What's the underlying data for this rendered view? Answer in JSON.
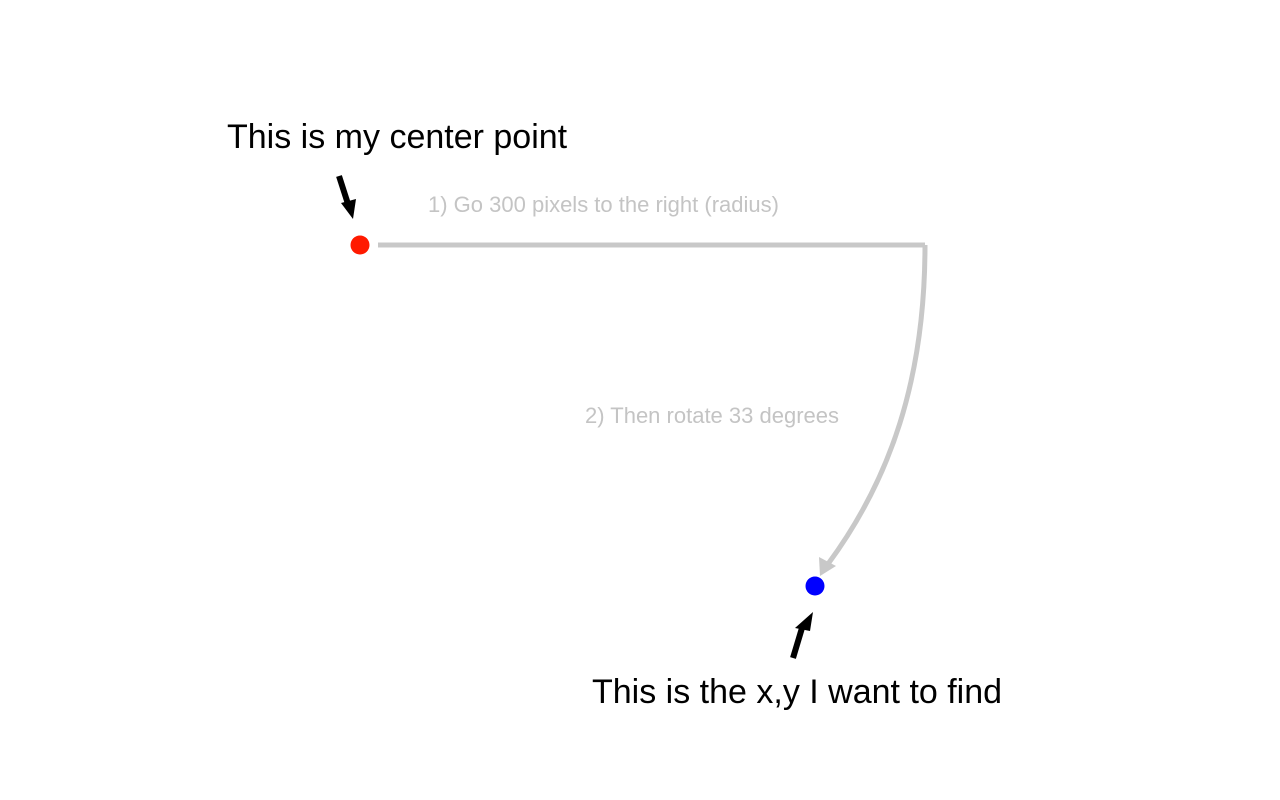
{
  "labels": {
    "center_point": "This is my center point",
    "target_point": "This is the x,y I want to find",
    "step1": "1)  Go 300 pixels to the right (radius)",
    "step2": "2) Then rotate 33 degrees"
  },
  "geometry": {
    "radius_pixels": 300,
    "rotation_degrees": 33
  },
  "colors": {
    "center_dot": "#ff1a00",
    "target_dot": "#0000ff",
    "path": "#c8c8c8",
    "step_text": "#c4c4c4",
    "main_text": "#000000",
    "pointer_arrow": "#000000"
  },
  "icons": {
    "pointer": "arrow-icon"
  }
}
